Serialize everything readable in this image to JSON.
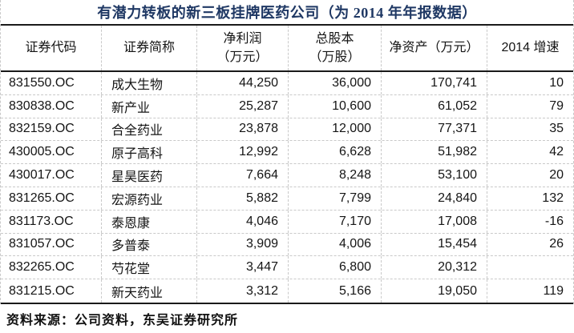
{
  "title": "有潜力转板的新三板挂牌医药公司（为 2014 年年报数据）",
  "source_note": "资料来源：公司资料，东吴证券研究所",
  "colors": {
    "title_text": "#1F3864",
    "thick_rule": "#1a1a1a",
    "dashed_grid": "#c9c9c9",
    "body_text": "#151515"
  },
  "table": {
    "headers": [
      "证券代码",
      "证券简称",
      "净利润\n（万元）",
      "总股本\n（万股）",
      "净资产（万元）",
      "2014 增速"
    ],
    "rows": [
      [
        "831550.OC",
        "成大生物",
        "44,250",
        "36,000",
        "170,741",
        "10"
      ],
      [
        "830838.OC",
        "新产业",
        "25,287",
        "10,600",
        "61,052",
        "79"
      ],
      [
        "832159.OC",
        "合全药业",
        "23,878",
        "12,000",
        "77,371",
        "35"
      ],
      [
        "430005.OC",
        "原子高科",
        "12,992",
        "6,628",
        "51,982",
        "42"
      ],
      [
        "430017.OC",
        "星昊医药",
        "7,664",
        "8,248",
        "53,100",
        "20"
      ],
      [
        "831265.OC",
        "宏源药业",
        "5,882",
        "7,799",
        "24,840",
        "132"
      ],
      [
        "831173.OC",
        "泰恩康",
        "4,046",
        "7,170",
        "17,008",
        "-16"
      ],
      [
        "831057.OC",
        "多普泰",
        "3,909",
        "4,006",
        "15,454",
        "26"
      ],
      [
        "832265.OC",
        "芍花堂",
        "3,447",
        "6,800",
        "20,312",
        ""
      ],
      [
        "831215.OC",
        "新天药业",
        "3,312",
        "5,166",
        "19,050",
        "119"
      ]
    ]
  }
}
